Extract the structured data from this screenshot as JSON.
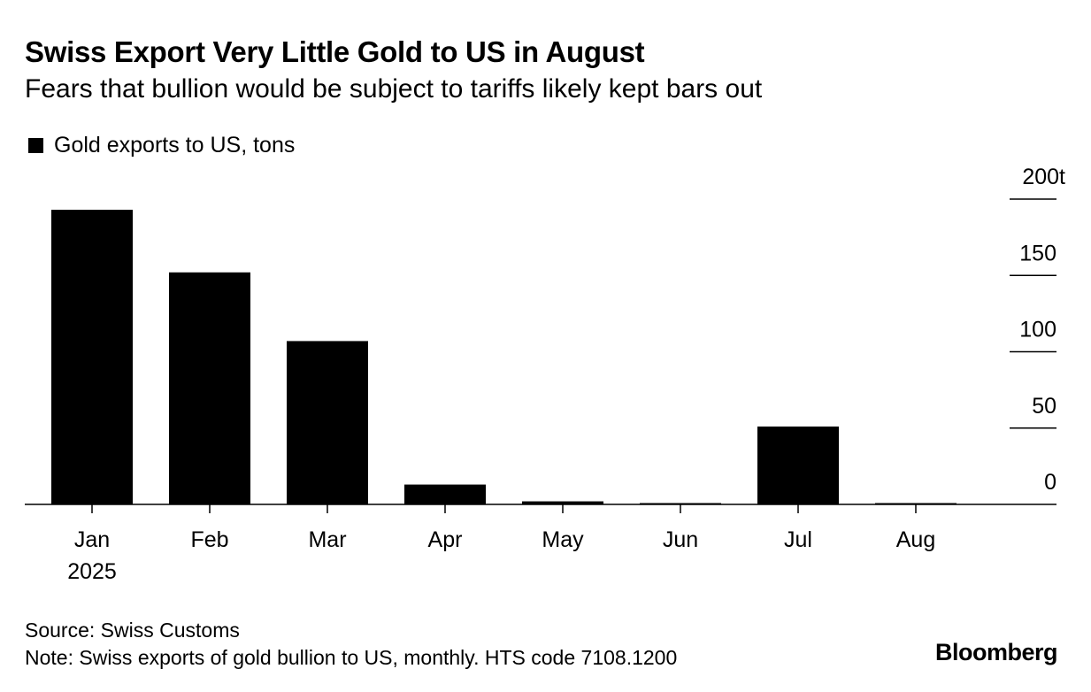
{
  "header": {
    "title": "Swiss Export Very Little Gold to US in August",
    "subtitle": "Fears that bullion would be subject to tariffs likely kept bars out"
  },
  "legend": {
    "label": "Gold exports to US, tons",
    "swatch_color": "#000000"
  },
  "chart_data": {
    "type": "bar",
    "categories": [
      "Jan",
      "Feb",
      "Mar",
      "Apr",
      "May",
      "Jun",
      "Jul",
      "Aug"
    ],
    "year_label": "2025",
    "series": [
      {
        "name": "Gold exports to US, tons",
        "values": [
          193,
          152,
          107,
          13,
          2,
          0.5,
          51,
          0.5
        ],
        "color": "#000000"
      }
    ],
    "ylim": [
      0,
      200
    ],
    "yticks": [
      0,
      50,
      100,
      150,
      200
    ],
    "ytick_labels": [
      "0",
      "50",
      "100",
      "150",
      "200t"
    ],
    "axis_side": "right",
    "grid": false
  },
  "footer": {
    "source": "Source: Swiss Customs",
    "note": "Note: Swiss exports of gold bullion to US, monthly. HTS code 7108.1200",
    "brand": "Bloomberg"
  }
}
